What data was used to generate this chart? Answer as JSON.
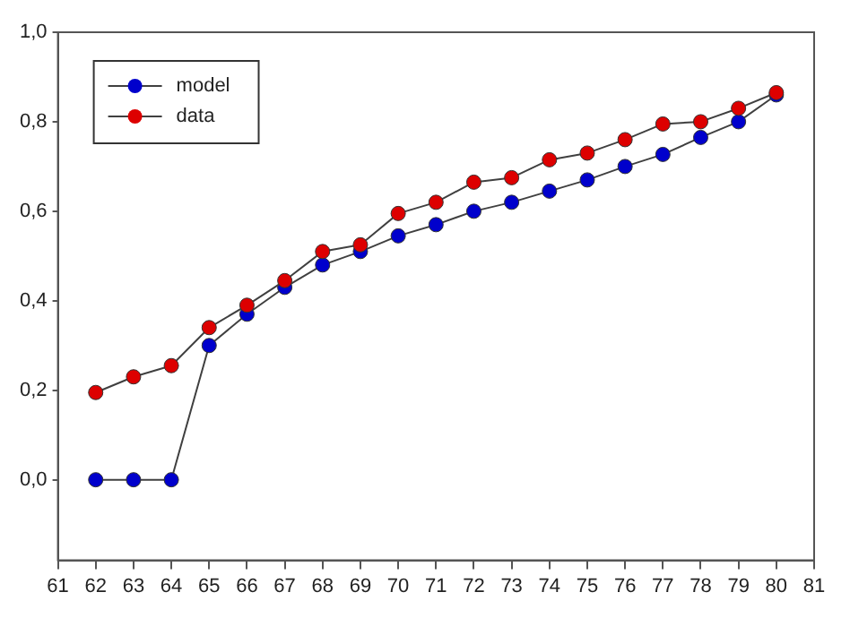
{
  "chart_data": {
    "type": "line",
    "x": [
      62,
      63,
      64,
      65,
      66,
      67,
      68,
      69,
      70,
      71,
      72,
      73,
      74,
      75,
      76,
      77,
      78,
      79,
      80
    ],
    "series": [
      {
        "name": "model",
        "color": "#0000cc",
        "values": [
          0,
          0,
          0,
          0.3,
          0.37,
          0.43,
          0.48,
          0.51,
          0.545,
          0.57,
          0.6,
          0.62,
          0.645,
          0.67,
          0.7,
          0.727,
          0.765,
          0.8,
          0.86
        ]
      },
      {
        "name": "data",
        "color": "#dd0000",
        "values": [
          0.195,
          0.23,
          0.255,
          0.34,
          0.39,
          0.445,
          0.51,
          0.525,
          0.595,
          0.62,
          0.665,
          0.675,
          0.715,
          0.73,
          0.76,
          0.795,
          0.8,
          0.83,
          0.865
        ]
      }
    ],
    "xlim": [
      61,
      81
    ],
    "xticks": [
      61,
      62,
      63,
      64,
      65,
      66,
      67,
      68,
      69,
      70,
      71,
      72,
      73,
      74,
      75,
      76,
      77,
      78,
      79,
      80,
      81
    ],
    "ylim": [
      -0.18,
      1.0
    ],
    "yticks": [
      {
        "value": 0,
        "label": "0,0"
      },
      {
        "value": 0.2,
        "label": "0,2"
      },
      {
        "value": 0.4,
        "label": "0,4"
      },
      {
        "value": 0.6,
        "label": "0,6"
      },
      {
        "value": 0.8,
        "label": "0,8"
      },
      {
        "value": 1.0,
        "label": "1,0"
      }
    ],
    "grid": false,
    "legend": "top left",
    "marker": "circle",
    "line_style": "solid"
  }
}
